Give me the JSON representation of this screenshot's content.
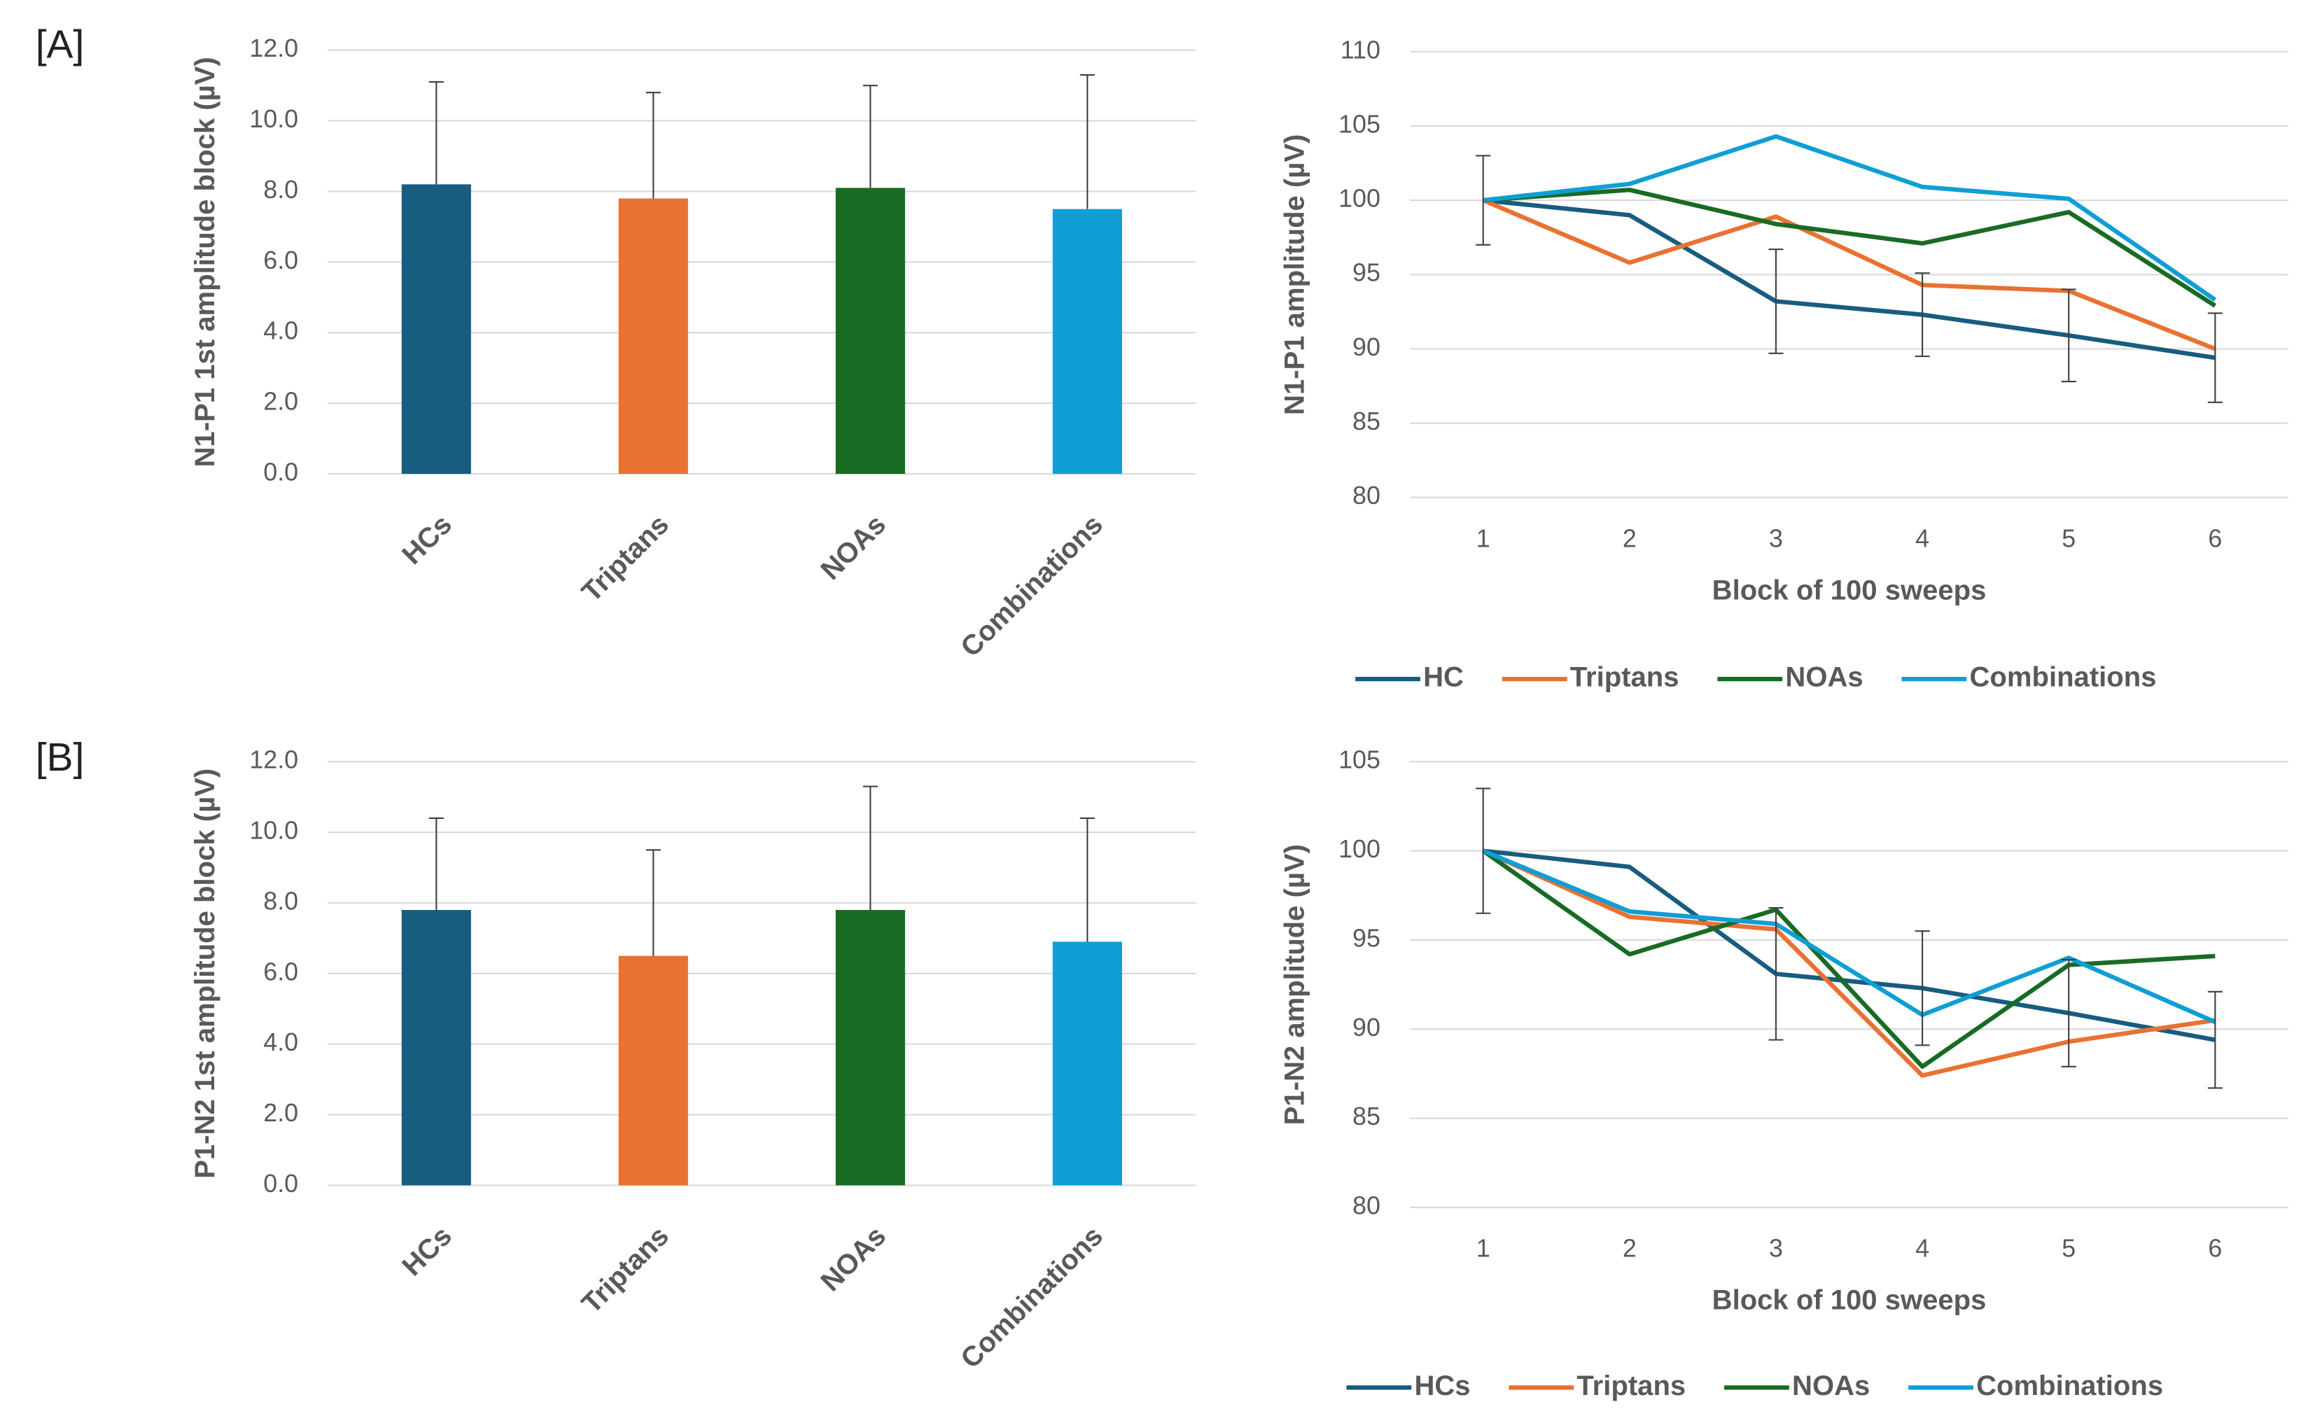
{
  "panel_labels": [
    "[A]",
    "[B]"
  ],
  "chart_data": [
    {
      "type": "bar",
      "y_label": "N1-P1 1st amplitude block (µV)",
      "categories": [
        "HCs",
        "Triptans",
        "NOAs",
        "Combinations"
      ],
      "values": [
        8.2,
        7.8,
        8.1,
        7.5
      ],
      "errors": [
        2.9,
        3.0,
        2.9,
        3.8
      ],
      "colors": [
        "#185c80",
        "#e97132",
        "#196b24",
        "#0f9ed5"
      ],
      "ylim": [
        0,
        12
      ],
      "yticks": [
        {
          "value": 0,
          "label": "0.0"
        },
        {
          "value": 2,
          "label": "2.0"
        },
        {
          "value": 4,
          "label": "4.0"
        },
        {
          "value": 6,
          "label": "6.0"
        },
        {
          "value": 8,
          "label": "8.0"
        },
        {
          "value": 10,
          "label": "10.0"
        },
        {
          "value": 12,
          "label": "12.0"
        }
      ],
      "grid": true
    },
    {
      "type": "line",
      "x_label": "Block of 100 sweeps",
      "y_label": "N1-P1 amplitude (µV)",
      "x": [
        1,
        2,
        3,
        4,
        5,
        6
      ],
      "xlim": [
        0.5,
        6.5
      ],
      "xticks": [
        1,
        2,
        3,
        4,
        5,
        6
      ],
      "ylim": [
        80,
        110
      ],
      "yticks": [
        80,
        85,
        90,
        95,
        100,
        105,
        110
      ],
      "grid": true,
      "legend": "bottom",
      "series": [
        {
          "name": "HC",
          "color": "#185c80",
          "values": [
            100,
            99,
            93.2,
            92.3,
            90.9,
            89.4
          ],
          "errors": [
            3,
            null,
            3.5,
            2.8,
            3.1,
            3.0
          ]
        },
        {
          "name": "Triptans",
          "color": "#e97132",
          "values": [
            100,
            95.8,
            98.9,
            94.3,
            93.9,
            90.0
          ]
        },
        {
          "name": "NOAs",
          "color": "#196b24",
          "values": [
            100,
            100.7,
            98.4,
            97.1,
            99.2,
            92.9
          ]
        },
        {
          "name": "Combinations",
          "color": "#0f9ed5",
          "values": [
            100,
            101.1,
            104.3,
            100.9,
            100.1,
            93.3
          ]
        }
      ]
    },
    {
      "type": "bar",
      "y_label": "P1-N2 1st amplitude block (µV)",
      "categories": [
        "HCs",
        "Triptans",
        "NOAs",
        "Combinations"
      ],
      "values": [
        7.8,
        6.5,
        7.8,
        6.9
      ],
      "errors": [
        2.6,
        3.0,
        3.5,
        3.5
      ],
      "colors": [
        "#185c80",
        "#e97132",
        "#196b24",
        "#0f9ed5"
      ],
      "ylim": [
        0,
        12
      ],
      "yticks": [
        {
          "value": 0,
          "label": "0.0"
        },
        {
          "value": 2,
          "label": "2.0"
        },
        {
          "value": 4,
          "label": "4.0"
        },
        {
          "value": 6,
          "label": "6.0"
        },
        {
          "value": 8,
          "label": "8.0"
        },
        {
          "value": 10,
          "label": "10.0"
        },
        {
          "value": 12,
          "label": "12.0"
        }
      ],
      "grid": true
    },
    {
      "type": "line",
      "x_label": "Block of 100 sweeps",
      "y_label": "P1-N2 amplitude (µV)",
      "x": [
        1,
        2,
        3,
        4,
        5,
        6
      ],
      "xlim": [
        0.5,
        6.5
      ],
      "xticks": [
        1,
        2,
        3,
        4,
        5,
        6
      ],
      "ylim": [
        80,
        105
      ],
      "yticks": [
        80,
        85,
        90,
        95,
        100,
        105
      ],
      "grid": true,
      "legend": "bottom",
      "series": [
        {
          "name": "HCs",
          "color": "#185c80",
          "values": [
            100,
            99.1,
            93.1,
            92.3,
            90.9,
            89.4
          ],
          "errors": [
            3.5,
            null,
            3.7,
            3.2,
            3.0,
            2.7
          ]
        },
        {
          "name": "Triptans",
          "color": "#e97132",
          "values": [
            100,
            96.3,
            95.6,
            87.4,
            89.3,
            90.5
          ]
        },
        {
          "name": "NOAs",
          "color": "#196b24",
          "values": [
            100,
            94.2,
            96.7,
            87.9,
            93.6,
            94.1
          ]
        },
        {
          "name": "Combinations",
          "color": "#0f9ed5",
          "values": [
            100,
            96.6,
            95.9,
            90.8,
            94.0,
            90.4
          ]
        }
      ]
    }
  ]
}
